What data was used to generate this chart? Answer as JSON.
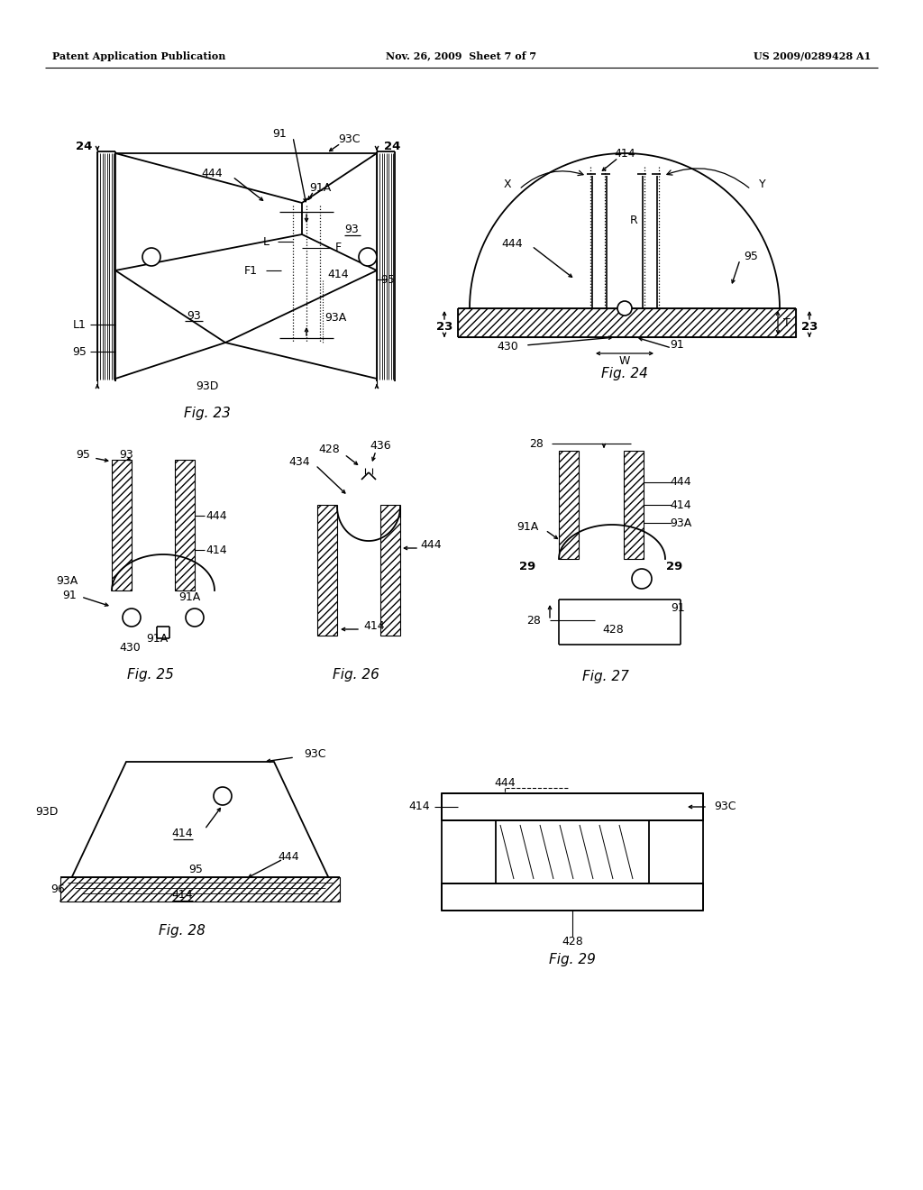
{
  "background_color": "#ffffff",
  "header_left": "Patent Application Publication",
  "header_center": "Nov. 26, 2009  Sheet 7 of 7",
  "header_right": "US 2009/0289428 A1",
  "line_color": "#000000",
  "text_color": "#000000"
}
